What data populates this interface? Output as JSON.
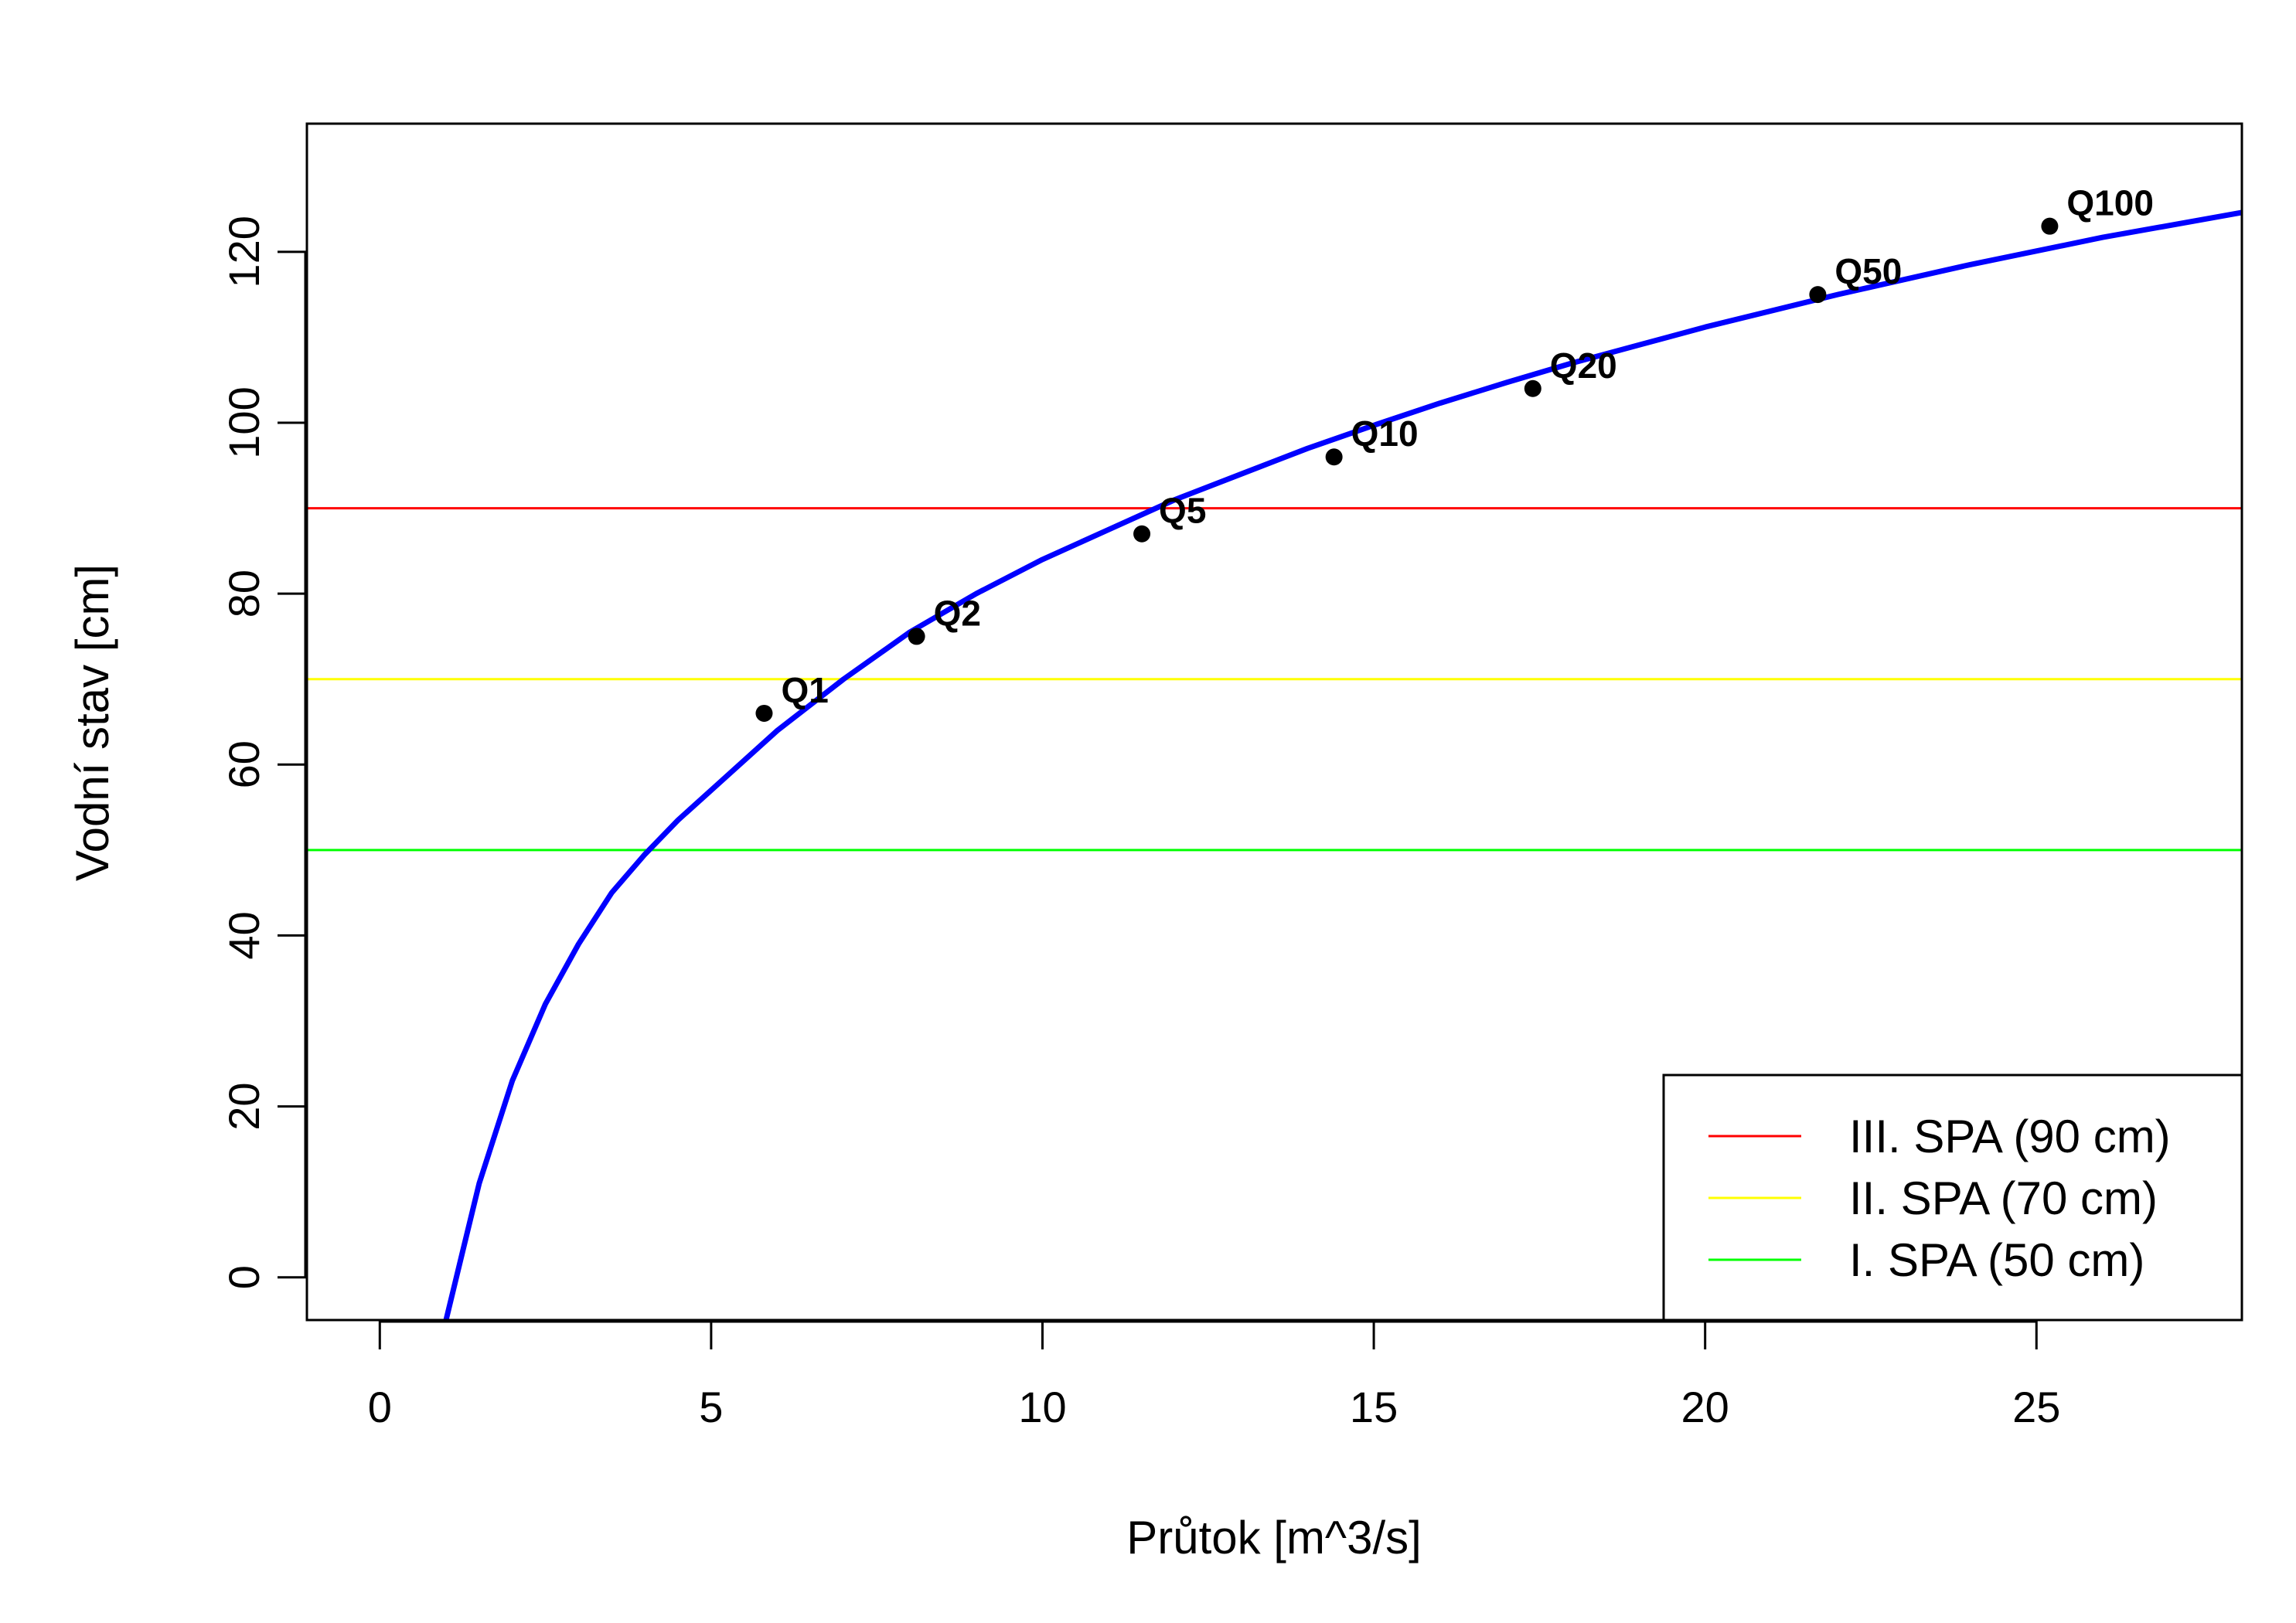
{
  "chart_data": {
    "type": "line",
    "title": "",
    "xlabel": "Průtok [m^3/s]",
    "ylabel": "Vodní stav [cm]",
    "xlim": [
      -1.1,
      28.1
    ],
    "ylim": [
      -5,
      135
    ],
    "xticks": [
      0,
      5,
      10,
      15,
      20,
      25
    ],
    "yticks": [
      0,
      20,
      40,
      60,
      80,
      100,
      120
    ],
    "grid": false,
    "points": [
      {
        "label": "Q1",
        "x": 5.8,
        "y": 66
      },
      {
        "label": "Q2",
        "x": 8.1,
        "y": 75
      },
      {
        "label": "Q5",
        "x": 11.5,
        "y": 87
      },
      {
        "label": "Q10",
        "x": 14.4,
        "y": 96
      },
      {
        "label": "Q20",
        "x": 17.4,
        "y": 104
      },
      {
        "label": "Q50",
        "x": 21.7,
        "y": 115
      },
      {
        "label": "Q100",
        "x": 25.2,
        "y": 123
      }
    ],
    "curve": {
      "color": "#0000ff",
      "x": [
        1.0,
        1.25,
        1.5,
        2,
        2.5,
        3,
        3.5,
        4,
        4.5,
        5,
        6,
        7,
        8,
        9,
        10,
        11,
        12,
        13,
        14,
        15,
        16,
        17,
        18,
        19,
        20,
        22,
        24,
        26,
        28.1
      ],
      "y": [
        -5,
        3,
        11,
        23,
        32,
        39,
        45,
        49.5,
        53.5,
        57,
        64,
        70,
        75.5,
        80,
        84,
        87.5,
        91,
        94,
        97,
        99.7,
        102.3,
        104.7,
        107,
        109.1,
        111.2,
        115,
        118.5,
        121.7,
        124.6
      ]
    },
    "hlines": [
      {
        "name": "III. SPA (90 cm)",
        "y": 90,
        "color": "#ff0000"
      },
      {
        "name": "II. SPA (70 cm)",
        "y": 70,
        "color": "#ffff00"
      },
      {
        "name": "I. SPA (50 cm)",
        "y": 50,
        "color": "#00ff00"
      }
    ],
    "legend": {
      "position": "bottom-right",
      "entries": [
        "III. SPA (90 cm)",
        "II. SPA (70 cm)",
        "I. SPA (50 cm)"
      ]
    }
  }
}
